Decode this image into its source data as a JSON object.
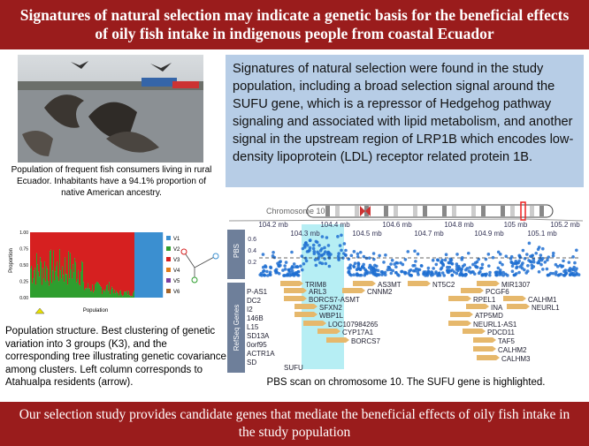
{
  "header": {
    "title": "Signatures of natural selection may indicate a genetic basis for the beneficial effects of oily fish intake in indigenous people from coastal Ecuador"
  },
  "photo_caption": "Population of frequent fish consumers living in rural Ecuador. Inhabitants have a 94.1% proportion of native American ancestry.",
  "structure_plot": {
    "y_label": "Proportion",
    "x_label": "Population",
    "yticks": [
      "1.00",
      "0.75",
      "0.50",
      "0.25",
      "0.00"
    ],
    "legend": [
      "V1",
      "V2",
      "V3",
      "V4",
      "V5",
      "V6"
    ]
  },
  "structure_caption": "Population structure. Best clustering of genetic variation into 3 groups (K3), and the corresponding tree illustrating genetic covariance among clusters. Left column corresponds to Atahualpa residents (arrow).",
  "summary": "Signatures of natural selection were found in the study population, including a broad selection signal around the SUFU gene, which is a repressor of Hedgehog pathway signaling and associated with lipid metabolism, and another signal in the upstream region of LRP1B which encodes low-density lipoprotein (LDL) receptor related protein 1B.",
  "genome_plot": {
    "chromosome": "Chromosome 10",
    "axis_top": [
      "104.2 mb",
      "104.4 mb",
      "104.6 mb",
      "104.8 mb",
      "105 mb",
      "105.2 mb"
    ],
    "axis_bottom": [
      "104.3 mb",
      "104.5 mb",
      "104.7 mb",
      "104.9 mb",
      "105.1 mb"
    ],
    "pbs_label": "PBS",
    "pbs_ticks": [
      "0.6",
      "0.4",
      "0.2"
    ],
    "genes_label": "RefSeq Genes",
    "genes": [
      "P-AS1",
      "DC2",
      "I2",
      "146B",
      "L15",
      "SD13A",
      "0orf95",
      "ACTR1A",
      "SD",
      "SUFU",
      "TRIM8",
      "ARL3",
      "BORCS7-ASMT",
      "SFXN2",
      "WBP1L",
      "LOC107984265",
      "CYP17A1",
      "BORCS7",
      "AS3MT",
      "CNNM2",
      "NT5C2",
      "MIR1307",
      "PCGF6",
      "RPEL1",
      "INA",
      "ATP5MD",
      "NEURL1-AS1",
      "PDCD11",
      "TAF5",
      "CALHM2",
      "CALHM3",
      "CALHM1",
      "NEURL1"
    ]
  },
  "genome_caption": "PBS scan on chromosome 10. The SUFU gene is highlighted.",
  "footer": {
    "title": "Our selection study provides candidate genes that mediate the beneficial effects of oily fish intake in the study population"
  }
}
